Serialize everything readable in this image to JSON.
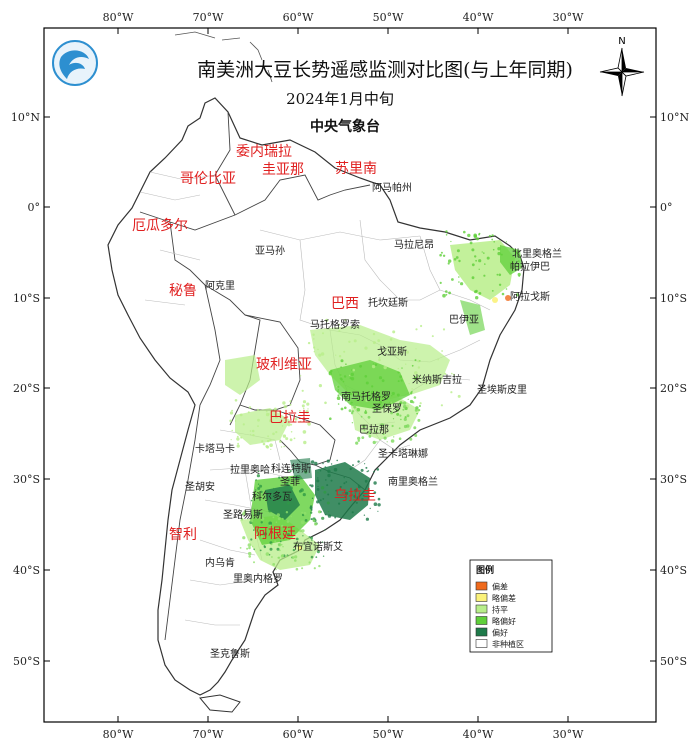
{
  "title": "南美洲大豆长势遥感监测对比图(与上年同期)",
  "subtitle": "2024年1月中旬",
  "organization": "中央气象台",
  "north_label": "N",
  "ticks": {
    "top": [
      "80°W",
      "70°W",
      "60°W",
      "50°W",
      "40°W",
      "30°W"
    ],
    "bottom": [
      "80°W",
      "70°W",
      "60°W",
      "50°W",
      "40°W",
      "30°W"
    ],
    "left": [
      "10°N",
      "0°",
      "10°S",
      "20°S",
      "30°S",
      "40°S",
      "50°S"
    ],
    "right": [
      "10°N",
      "0°",
      "10°S",
      "20°S",
      "30°S",
      "40°S",
      "50°S"
    ]
  },
  "countries": [
    "委内瑞拉",
    "哥伦比亚",
    "圭亚那",
    "苏里南",
    "厄瓜多尔",
    "秘鲁",
    "巴西",
    "玻利维亚",
    "巴拉圭",
    "乌拉圭",
    "智利",
    "阿根廷"
  ],
  "regions": [
    "阿马帕州",
    "亚马孙",
    "马拉尼昂",
    "北里奥格兰",
    "帕拉伊巴",
    "阿克里",
    "托坎廷斯",
    "阿拉戈斯",
    "巴伊亚",
    "马托格罗索",
    "戈亚斯",
    "米纳斯吉拉",
    "南马托格罗",
    "圣埃斯皮里",
    "圣保罗",
    "巴拉那",
    "圣卡塔琳娜",
    "卡塔马卡",
    "拉里奥哈",
    "科连特斯",
    "圣菲",
    "南里奥格兰",
    "圣胡安",
    "科尔多瓦",
    "圣路易斯",
    "布宜诺斯艾",
    "内乌肯",
    "里奥内格罗",
    "圣克鲁斯"
  ],
  "legend": {
    "title": "图例",
    "items": [
      {
        "label": "偏差",
        "color": "#f06a1c"
      },
      {
        "label": "略偏差",
        "color": "#fbf27a"
      },
      {
        "label": "持平",
        "color": "#b8ee8a"
      },
      {
        "label": "略偏好",
        "color": "#5fcf3a"
      },
      {
        "label": "偏好",
        "color": "#1e7a4a"
      },
      {
        "label": "非种植区",
        "color": "#ffffff"
      }
    ]
  }
}
